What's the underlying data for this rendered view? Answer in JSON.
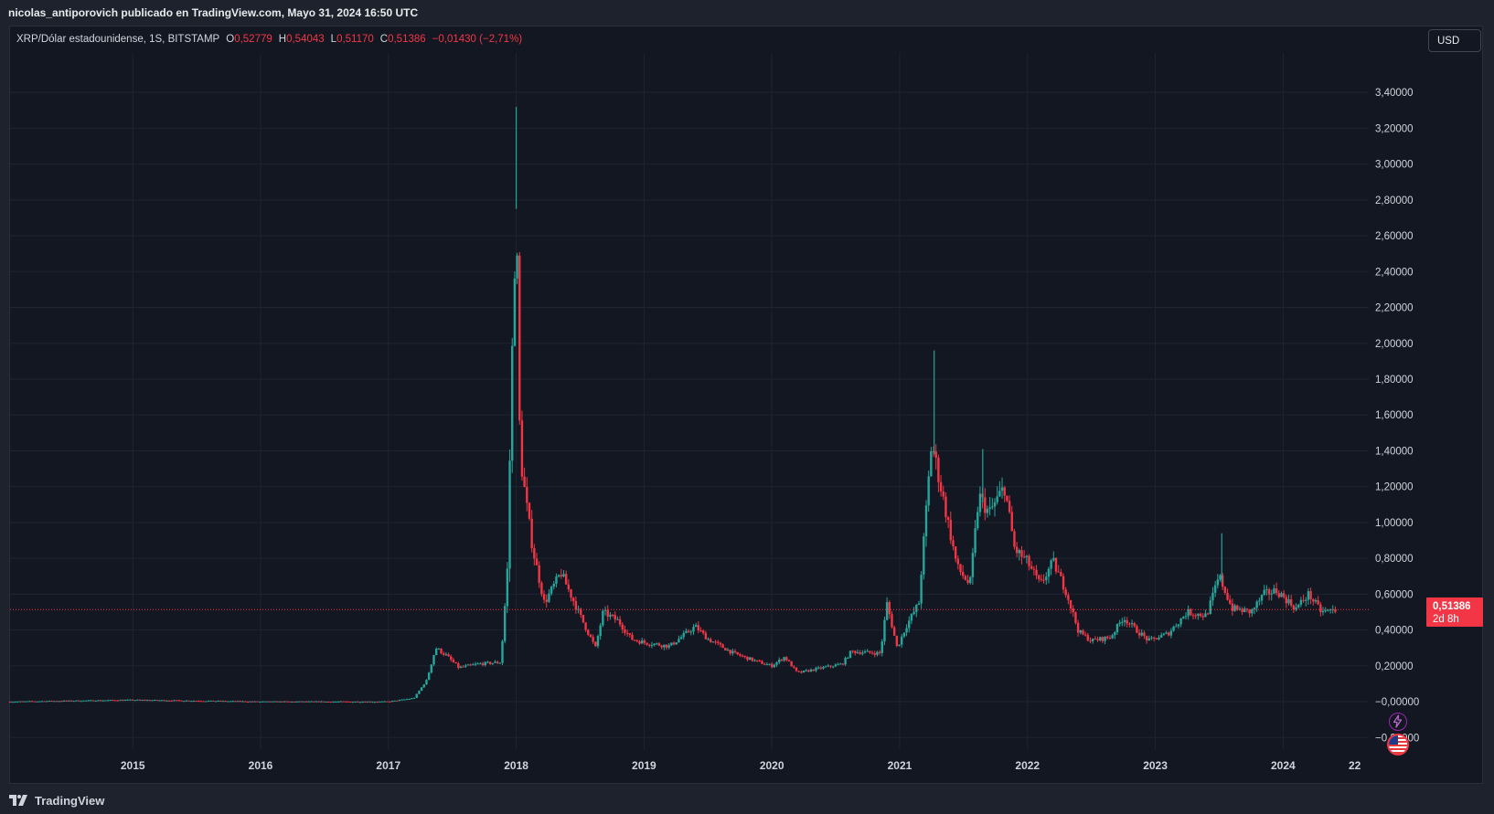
{
  "header": {
    "publish_line": "nicolas_antiporovich publicado en TradingView.com, Mayo 31, 2024 16:50 UTC"
  },
  "legend": {
    "symbol": "XRP/Dólar estadounidense, 1S, BITSTAMP",
    "open_label": "O",
    "open_value": "0,52779",
    "high_label": "H",
    "high_value": "0,54043",
    "low_label": "L",
    "low_value": "0,51170",
    "close_label": "C",
    "close_value": "0,51386",
    "change": "−0,01430 (−2,71%)"
  },
  "currency_button": "USD",
  "price_tag": {
    "price": "0,51386",
    "countdown": "2d 8h"
  },
  "footer": {
    "brand": "TradingView"
  },
  "colors": {
    "up": "#26a69a",
    "down": "#f23645",
    "background": "#131722",
    "grid": "#1f2430"
  },
  "icons": [
    "tradingview-logo-icon",
    "lightning-icon",
    "us-flag-icon"
  ],
  "chart_data": {
    "type": "candlestick",
    "title": "XRP/Dólar estadounidense, 1S, BITSTAMP",
    "x_type": "time",
    "x_ticks": [
      "2015",
      "2016",
      "2017",
      "2018",
      "2019",
      "2020",
      "2021",
      "2022",
      "2023",
      "2024",
      "22"
    ],
    "y_ticks": [
      "−0,20000",
      "−0,00000",
      "0,20000",
      "0,40000",
      "0,60000",
      "0,80000",
      "1,00000",
      "1,20000",
      "1,40000",
      "1,60000",
      "1,80000",
      "2,00000",
      "2,20000",
      "2,40000",
      "2,60000",
      "2,80000",
      "3,00000",
      "3,20000",
      "3,40000"
    ],
    "ylim": [
      -0.27,
      3.62
    ],
    "xlim": [
      2014.04,
      2024.67
    ],
    "grid": true,
    "last_price": 0.51386,
    "price_series": [
      {
        "t": 2014.04,
        "v": 0.0
      },
      {
        "t": 2015.0,
        "v": 0.01
      },
      {
        "t": 2016.0,
        "v": 0.0
      },
      {
        "t": 2017.0,
        "v": 0.0
      },
      {
        "t": 2017.2,
        "v": 0.02
      },
      {
        "t": 2017.3,
        "v": 0.12
      },
      {
        "t": 2017.37,
        "v": 0.3
      },
      {
        "t": 2017.45,
        "v": 0.26
      },
      {
        "t": 2017.55,
        "v": 0.19
      },
      {
        "t": 2017.7,
        "v": 0.21
      },
      {
        "t": 2017.88,
        "v": 0.22
      },
      {
        "t": 2017.93,
        "v": 0.72
      },
      {
        "t": 2017.97,
        "v": 2.0
      },
      {
        "t": 2018.0,
        "v": 2.75
      },
      {
        "t": 2018.03,
        "v": 1.38
      },
      {
        "t": 2018.08,
        "v": 1.1
      },
      {
        "t": 2018.13,
        "v": 0.85
      },
      {
        "t": 2018.22,
        "v": 0.55
      },
      {
        "t": 2018.35,
        "v": 0.72
      },
      {
        "t": 2018.5,
        "v": 0.48
      },
      {
        "t": 2018.62,
        "v": 0.3
      },
      {
        "t": 2018.68,
        "v": 0.5
      },
      {
        "t": 2018.8,
        "v": 0.45
      },
      {
        "t": 2018.9,
        "v": 0.35
      },
      {
        "t": 2019.0,
        "v": 0.33
      },
      {
        "t": 2019.2,
        "v": 0.31
      },
      {
        "t": 2019.4,
        "v": 0.42
      },
      {
        "t": 2019.5,
        "v": 0.35
      },
      {
        "t": 2019.7,
        "v": 0.27
      },
      {
        "t": 2019.9,
        "v": 0.22
      },
      {
        "t": 2020.0,
        "v": 0.2
      },
      {
        "t": 2020.1,
        "v": 0.25
      },
      {
        "t": 2020.2,
        "v": 0.16
      },
      {
        "t": 2020.4,
        "v": 0.19
      },
      {
        "t": 2020.55,
        "v": 0.21
      },
      {
        "t": 2020.62,
        "v": 0.28
      },
      {
        "t": 2020.85,
        "v": 0.27
      },
      {
        "t": 2020.9,
        "v": 0.55
      },
      {
        "t": 2020.98,
        "v": 0.3
      },
      {
        "t": 2021.05,
        "v": 0.42
      },
      {
        "t": 2021.15,
        "v": 0.55
      },
      {
        "t": 2021.25,
        "v": 1.45
      },
      {
        "t": 2021.35,
        "v": 1.1
      },
      {
        "t": 2021.45,
        "v": 0.75
      },
      {
        "t": 2021.55,
        "v": 0.65
      },
      {
        "t": 2021.62,
        "v": 1.15
      },
      {
        "t": 2021.7,
        "v": 1.05
      },
      {
        "t": 2021.82,
        "v": 1.2
      },
      {
        "t": 2021.9,
        "v": 0.85
      },
      {
        "t": 2022.0,
        "v": 0.78
      },
      {
        "t": 2022.1,
        "v": 0.65
      },
      {
        "t": 2022.2,
        "v": 0.78
      },
      {
        "t": 2022.3,
        "v": 0.62
      },
      {
        "t": 2022.4,
        "v": 0.39
      },
      {
        "t": 2022.5,
        "v": 0.34
      },
      {
        "t": 2022.65,
        "v": 0.36
      },
      {
        "t": 2022.75,
        "v": 0.47
      },
      {
        "t": 2022.85,
        "v": 0.4
      },
      {
        "t": 2022.95,
        "v": 0.34
      },
      {
        "t": 2023.1,
        "v": 0.38
      },
      {
        "t": 2023.25,
        "v": 0.5
      },
      {
        "t": 2023.4,
        "v": 0.48
      },
      {
        "t": 2023.5,
        "v": 0.7
      },
      {
        "t": 2023.6,
        "v": 0.52
      },
      {
        "t": 2023.75,
        "v": 0.5
      },
      {
        "t": 2023.85,
        "v": 0.6
      },
      {
        "t": 2023.95,
        "v": 0.62
      },
      {
        "t": 2024.1,
        "v": 0.52
      },
      {
        "t": 2024.2,
        "v": 0.6
      },
      {
        "t": 2024.3,
        "v": 0.5
      },
      {
        "t": 2024.42,
        "v": 0.51386
      }
    ],
    "spikes": [
      {
        "t": 2018.0,
        "high": 3.32
      },
      {
        "t": 2021.27,
        "high": 1.96
      },
      {
        "t": 2021.65,
        "high": 1.41
      },
      {
        "t": 2023.52,
        "high": 0.94
      }
    ]
  }
}
